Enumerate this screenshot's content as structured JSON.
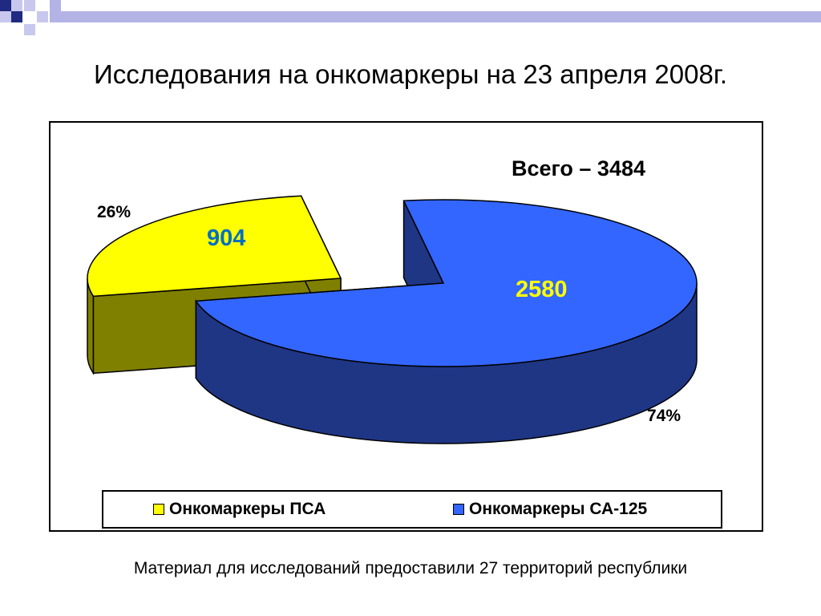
{
  "slide": {
    "title": "Исследования на онкомаркеры на 23 апреля 2008г.",
    "footnote": "Материал для исследований предоставили 27 территорий республики"
  },
  "chart_data": {
    "type": "pie",
    "total_label": "Всего – 3484",
    "slices": [
      {
        "name": "Онкомаркеры ПСА",
        "value": 904,
        "value_label": "904",
        "percent_label": "26%",
        "color": "#ffff00",
        "side_color": "#808000",
        "value_color": "#0070c0"
      },
      {
        "name": "Онкомаркеры СА-125",
        "value": 2580,
        "value_label": "2580",
        "percent_label": "74%",
        "color": "#3366ff",
        "side_color": "#1f3685",
        "value_color": "#ffff00"
      }
    ],
    "legend_position": "bottom"
  },
  "colors": {
    "deco_navy": "#1f2a80",
    "deco_lilac": "#b3b3e6"
  }
}
